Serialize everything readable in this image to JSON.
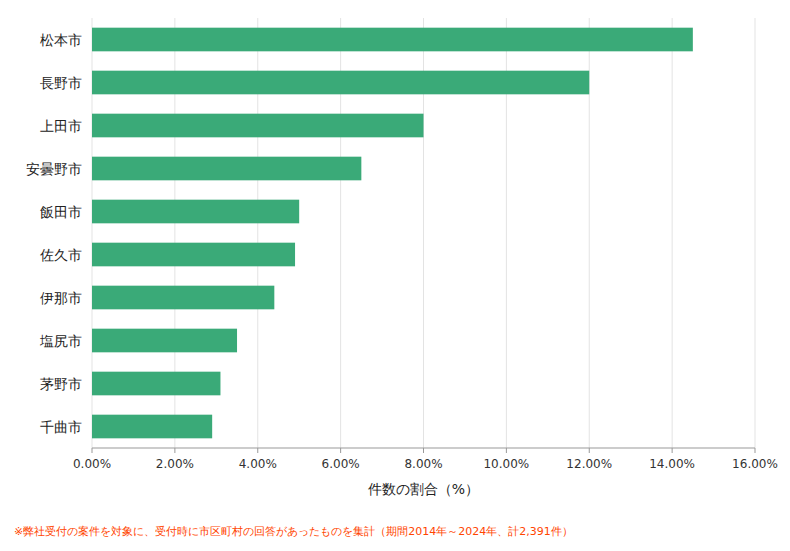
{
  "chart_data": {
    "type": "bar",
    "orientation": "horizontal",
    "categories": [
      "松本市",
      "長野市",
      "上田市",
      "安曇野市",
      "飯田市",
      "佐久市",
      "伊那市",
      "塩尻市",
      "茅野市",
      "千曲市"
    ],
    "values": [
      14.5,
      12.0,
      8.0,
      6.5,
      5.0,
      4.9,
      4.4,
      3.5,
      3.1,
      2.9
    ],
    "color": "#3aaa78",
    "xlabel": "件数の割合（%）",
    "xlim": [
      0,
      16.0
    ],
    "xticks": [
      {
        "value": 0,
        "label": "0.00%"
      },
      {
        "value": 2,
        "label": "2.00%"
      },
      {
        "value": 4,
        "label": "4.00%"
      },
      {
        "value": 6,
        "label": "6.00%"
      },
      {
        "value": 8,
        "label": "8.00%"
      },
      {
        "value": 10,
        "label": "10.00%"
      },
      {
        "value": 12,
        "label": "12.00%"
      },
      {
        "value": 14,
        "label": "14.00%"
      },
      {
        "value": 16,
        "label": "16.00%"
      }
    ],
    "grid": true,
    "annotations": [
      {
        "text": "※弊社受付の案件を対象に、受付時に市区町村の回答があったものを集計（期間2014年～2024年、計2,391件）",
        "color": "#ff4500"
      }
    ]
  }
}
